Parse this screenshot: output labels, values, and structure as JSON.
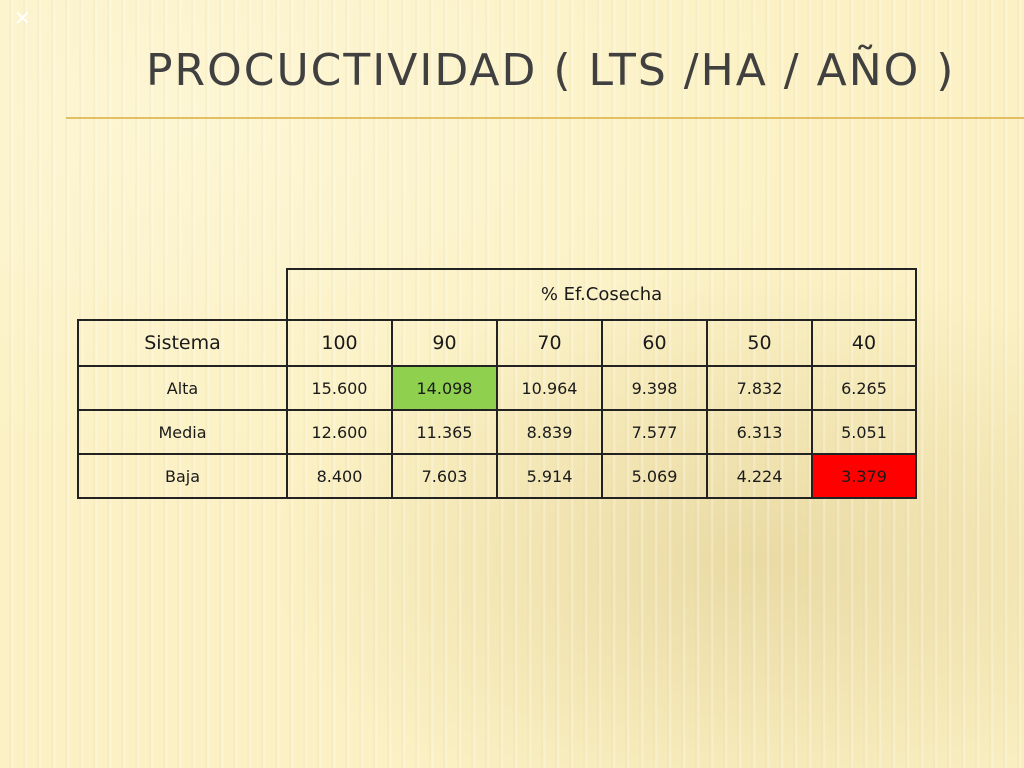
{
  "slide": {
    "mark": "✕",
    "title": "PROCUCTIVIDAD ( LTS /HA / AÑO )"
  },
  "table": {
    "group_header": "% Ef.Cosecha",
    "row_header_label": "Sistema",
    "columns": [
      "100",
      "90",
      "70",
      "60",
      "50",
      "40"
    ],
    "rows": [
      {
        "label": "Alta",
        "values": [
          "15.600",
          "14.098",
          "10.964",
          "9.398",
          "7.832",
          "6.265"
        ]
      },
      {
        "label": "Media",
        "values": [
          "12.600",
          "11.365",
          "8.839",
          "7.577",
          "6.313",
          "5.051"
        ]
      },
      {
        "label": "Baja",
        "values": [
          "8.400",
          "7.603",
          "5.914",
          "5.069",
          "4.224",
          "3.379"
        ]
      }
    ],
    "highlight_colors": {
      "max": "#8fd14f",
      "min": "#ff0000"
    }
  }
}
